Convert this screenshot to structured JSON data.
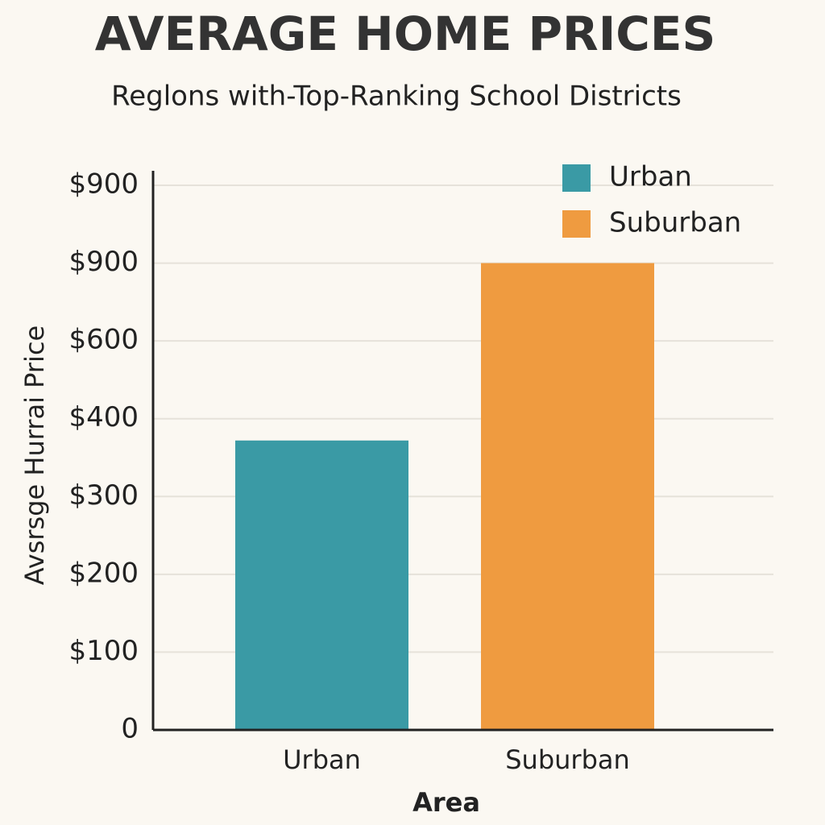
{
  "chart_data": {
    "type": "bar",
    "title": "AVERAGE HOME PRICES",
    "subtitle": "Reglons with-Top-Ranking School Districts",
    "x_label": "Area",
    "y_label": "Avsrsge Hurrai Price",
    "categories": [
      "Urban",
      "Suburban"
    ],
    "series": [
      {
        "name": "Urban",
        "color": "#3a9aa5",
        "values": [
          372,
          null
        ]
      },
      {
        "name": "Suburban",
        "color": "#ef9b40",
        "values": [
          null,
          900
        ]
      }
    ],
    "ylim": [
      0,
      900
    ],
    "yticks": [
      0,
      {
        "value": 100,
        "label": "$100"
      },
      {
        "value": 200,
        "label": "$200"
      },
      {
        "value": 300,
        "label": "$300"
      },
      {
        "value": 400,
        "label": "$400"
      },
      {
        "value": 600,
        "label": "$600"
      },
      {
        "value": 900,
        "label": "$900"
      },
      {
        "value": 900,
        "label": "$900"
      }
    ],
    "grid": true,
    "legend": "top-right"
  }
}
